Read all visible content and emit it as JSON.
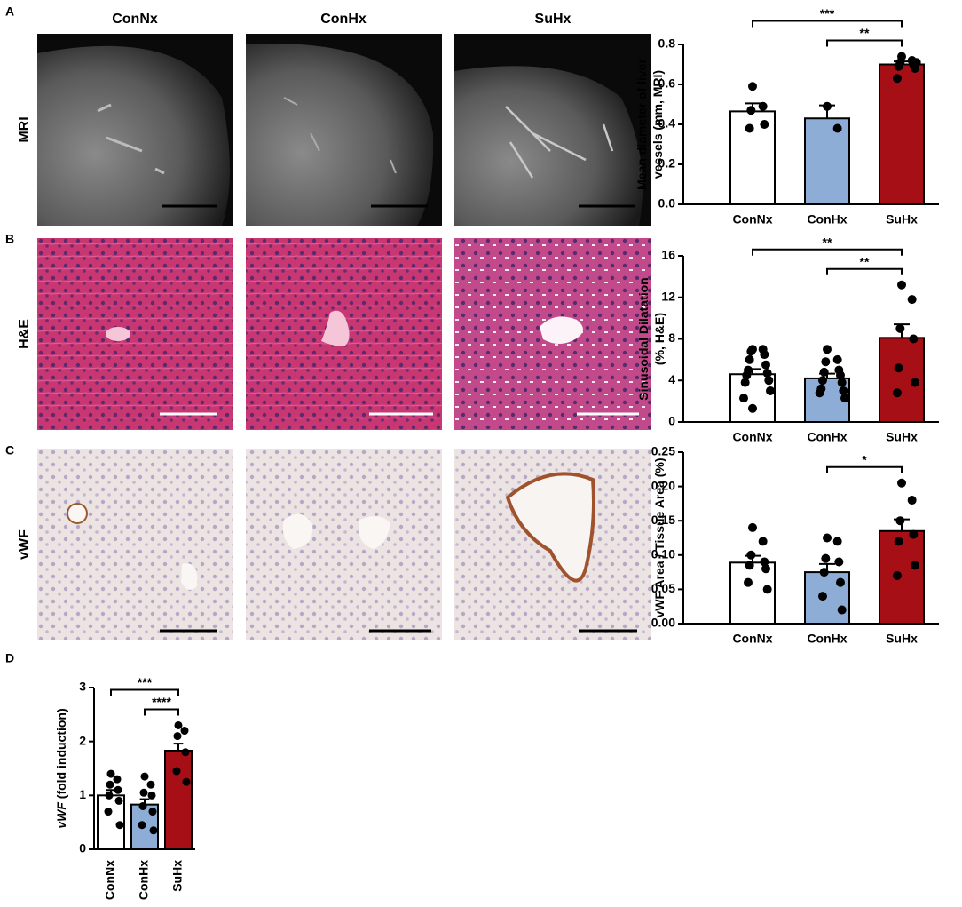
{
  "figure": {
    "panels": [
      "A",
      "B",
      "C",
      "D"
    ],
    "columns": [
      "ConNx",
      "ConHx",
      "SuHx"
    ],
    "rows": [
      "MRI",
      "H&E",
      "vWF"
    ]
  },
  "chart_data": [
    {
      "type": "bar",
      "categories": [
        "ConNx",
        "ConHx",
        "SuHx"
      ],
      "colors": [
        "#ffffff",
        "#8eadd6",
        "#a50f15"
      ],
      "values": [
        0.465,
        0.43,
        0.7
      ],
      "errors": [
        0.04,
        0.065,
        0.015
      ],
      "points": [
        [
          0.59,
          0.49,
          0.47,
          0.4,
          0.38
        ],
        [
          0.49,
          0.38
        ],
        [
          0.74,
          0.72,
          0.71,
          0.7,
          0.69,
          0.68,
          0.63,
          0.71
        ]
      ],
      "ylim": [
        0,
        0.8
      ],
      "yticks": [
        {
          "value": 0,
          "label": "0.0"
        },
        {
          "value": 0.2,
          "label": "0.2"
        },
        {
          "value": 0.4,
          "label": "0.4"
        },
        {
          "value": 0.6,
          "label": "0.6"
        },
        {
          "value": 0.8,
          "label": "0.8"
        }
      ],
      "ylabel": [
        "Mean diameter of liver",
        "vessels (mm, MRI)"
      ],
      "significance": [
        {
          "from": 1,
          "to": 2,
          "label": "**"
        },
        {
          "from": 0,
          "to": 2,
          "label": "***"
        }
      ]
    },
    {
      "type": "bar",
      "categories": [
        "ConNx",
        "ConHx",
        "SuHx"
      ],
      "colors": [
        "#ffffff",
        "#8eadd6",
        "#a50f15"
      ],
      "values": [
        4.6,
        4.2,
        8.1
      ],
      "errors": [
        0.5,
        0.45,
        1.3
      ],
      "points": [
        [
          7,
          7,
          6.8,
          6.5,
          6,
          5.5,
          5,
          4.7,
          4.5,
          4,
          3.8,
          3,
          2.3,
          1.3
        ],
        [
          7,
          6,
          5.8,
          5,
          4.8,
          4.5,
          4,
          3.8,
          3.2,
          3,
          2.8,
          2.3
        ],
        [
          13.2,
          11.8,
          9,
          8,
          5.2,
          3.8,
          2.8
        ]
      ],
      "ylim": [
        0,
        16
      ],
      "yticks": [
        0,
        4,
        8,
        12,
        16
      ],
      "ylabel": [
        "Sinusoidal Dilatation",
        "(%, H&E)"
      ],
      "significance": [
        {
          "from": 1,
          "to": 2,
          "label": "**"
        },
        {
          "from": 0,
          "to": 2,
          "label": "**"
        }
      ]
    },
    {
      "type": "bar",
      "categories": [
        "ConNx",
        "ConHx",
        "SuHx"
      ],
      "colors": [
        "#ffffff",
        "#8eadd6",
        "#a50f15"
      ],
      "values": [
        0.089,
        0.075,
        0.135
      ],
      "errors": [
        0.01,
        0.012,
        0.017
      ],
      "points": [
        [
          0.14,
          0.12,
          0.1,
          0.09,
          0.085,
          0.08,
          0.06,
          0.05
        ],
        [
          0.125,
          0.12,
          0.095,
          0.09,
          0.075,
          0.06,
          0.04,
          0.02
        ],
        [
          0.205,
          0.18,
          0.15,
          0.13,
          0.12,
          0.085,
          0.07
        ]
      ],
      "ylim": [
        0,
        0.25
      ],
      "yticks": [
        {
          "value": 0,
          "label": "0.00"
        },
        {
          "value": 0.05,
          "label": "0.05"
        },
        {
          "value": 0.1,
          "label": "0.10"
        },
        {
          "value": 0.15,
          "label": "0.15"
        },
        {
          "value": 0.2,
          "label": "0.20"
        },
        {
          "value": 0.25,
          "label": "0.25"
        }
      ],
      "ylabel": [
        "vWF Area / Tissue Area (%)"
      ],
      "significance": [
        {
          "from": 1,
          "to": 2,
          "label": "*"
        }
      ]
    },
    {
      "type": "bar",
      "categories": [
        "ConNx",
        "ConHx",
        "SuHx"
      ],
      "colors": [
        "#ffffff",
        "#8eadd6",
        "#a50f15"
      ],
      "values": [
        1.0,
        0.83,
        1.83
      ],
      "errors": [
        0.1,
        0.1,
        0.13
      ],
      "points": [
        [
          1.4,
          1.3,
          1.2,
          1.1,
          1.0,
          0.9,
          0.7,
          0.45
        ],
        [
          1.35,
          1.2,
          1.05,
          1.0,
          0.8,
          0.7,
          0.45,
          0.35
        ],
        [
          2.3,
          2.2,
          2.1,
          1.8,
          1.45,
          1.25
        ]
      ],
      "ylim": [
        0,
        3
      ],
      "yticks": [
        0,
        1,
        2,
        3
      ],
      "ylabel_italic": "vWF",
      "ylabel": [
        " (fold induction)"
      ],
      "significance": [
        {
          "from": 1,
          "to": 2,
          "label": "****"
        },
        {
          "from": 0,
          "to": 2,
          "label": "***"
        }
      ]
    }
  ]
}
